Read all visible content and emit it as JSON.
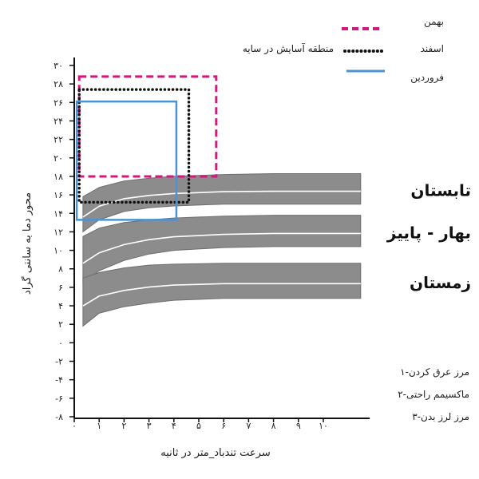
{
  "chart_data": {
    "type": "area",
    "xlabel": "سرعت تندباد_متر در ثانیه",
    "ylabel": "محور دما به سانتی گراد",
    "x_ticks": [
      "۰",
      "۱",
      "۲",
      "۳",
      "۴",
      "۵",
      "۶",
      "۷",
      "۸",
      "۹",
      "۱۰"
    ],
    "x_tick_values": [
      0,
      1,
      2,
      3,
      4,
      5,
      6,
      7,
      8,
      9,
      10
    ],
    "y_ticks": [
      "۳۰",
      "۲۸",
      "۲۶",
      "۲۴",
      "۲۲",
      "۲۰",
      "۱۸",
      "۱۶",
      "۱۴",
      "۱۲",
      "۱۰",
      "۸",
      "۶",
      "۴",
      "۲",
      "۰",
      "-۲",
      "-۴",
      "-۶",
      "-۸"
    ],
    "y_tick_values": [
      30,
      28,
      26,
      24,
      22,
      20,
      18,
      16,
      14,
      12,
      10,
      8,
      6,
      4,
      2,
      0,
      -2,
      -4,
      -6,
      -8
    ],
    "xlim": [
      0,
      11.8
    ],
    "ylim": [
      -8,
      30
    ],
    "bands": [
      {
        "name": "تابستان",
        "x": [
          0.35,
          1,
          2,
          3,
          4,
          6,
          8,
          10,
          11.5
        ],
        "lower": [
          12,
          13.3,
          14.2,
          14.6,
          14.8,
          15,
          15,
          15,
          15
        ],
        "upper": [
          15.8,
          16.8,
          17.5,
          17.8,
          18,
          18.2,
          18.3,
          18.3,
          18.3
        ]
      },
      {
        "name": "بهار - پاییز",
        "x": [
          0.35,
          1,
          2,
          3,
          4,
          6,
          8,
          10,
          11.5
        ],
        "lower": [
          6.5,
          7.8,
          8.9,
          9.6,
          10,
          10.3,
          10.4,
          10.4,
          10.4
        ],
        "upper": [
          11.5,
          12.4,
          13,
          13.3,
          13.5,
          13.7,
          13.8,
          13.8,
          13.8
        ]
      },
      {
        "name": "زمستان",
        "x": [
          0.35,
          1,
          2,
          3,
          4,
          6,
          8,
          10,
          11.5
        ],
        "lower": [
          1.8,
          3.2,
          3.9,
          4.3,
          4.6,
          4.8,
          4.8,
          4.8,
          4.8
        ],
        "upper": [
          7,
          7.6,
          8.1,
          8.4,
          8.5,
          8.6,
          8.6,
          8.6,
          8.6
        ]
      }
    ],
    "comfort_zones": [
      {
        "name": "بهمن",
        "color": "#d6167f",
        "style": "dashed",
        "x_range": [
          0.2,
          5.7
        ],
        "y_range": [
          18,
          28.8
        ]
      },
      {
        "name": "اسفند",
        "color": "#111111",
        "style": "dotted",
        "x_range": [
          0.2,
          4.6
        ],
        "y_range": [
          15.2,
          27.4
        ]
      },
      {
        "name": "فروردین",
        "color": "#4a93d4",
        "style": "solid",
        "x_range": [
          0.1,
          4.1
        ],
        "y_range": [
          13.3,
          26.1
        ]
      }
    ]
  },
  "legend": {
    "items": [
      {
        "name": "بهمن",
        "color": "#d6167f",
        "style": "dashed"
      },
      {
        "name": "اسفند",
        "color": "#111111",
        "style": "dotted"
      },
      {
        "name": "فروردین",
        "color": "#4a93d4",
        "style": "solid"
      }
    ],
    "shaded_zone_label": "منطقه آسایش در سایه"
  },
  "notes": [
    "۱-مرز عرق کردن",
    "۲-ماکسیمم راحتی",
    "۳-مرز لرز بدن"
  ]
}
